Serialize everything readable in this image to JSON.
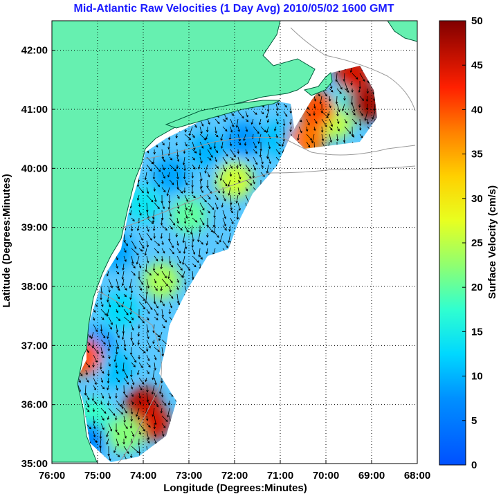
{
  "chart_data": {
    "type": "heatmap",
    "title": "Mid-Atlantic Raw Velocities (1 Day Avg) 2010/05/02 1600 GMT",
    "xlabel": "Longitude (Degrees:Minutes)",
    "ylabel": "Latitude (Degrees:Minutes)",
    "xlim": [
      -76,
      -68
    ],
    "ylim": [
      35,
      42.5
    ],
    "x_ticks": [
      {
        "value": -76,
        "label": "76:00"
      },
      {
        "value": -75,
        "label": "75:00"
      },
      {
        "value": -74,
        "label": "74:00"
      },
      {
        "value": -73,
        "label": "73:00"
      },
      {
        "value": -72,
        "label": "72:00"
      },
      {
        "value": -71,
        "label": "71:00"
      },
      {
        "value": -70,
        "label": "70:00"
      },
      {
        "value": -69,
        "label": "69:00"
      },
      {
        "value": -68,
        "label": "68:00"
      }
    ],
    "y_ticks": [
      {
        "value": 35,
        "label": "35:00"
      },
      {
        "value": 36,
        "label": "36:00"
      },
      {
        "value": 37,
        "label": "37:00"
      },
      {
        "value": 38,
        "label": "38:00"
      },
      {
        "value": 39,
        "label": "39:00"
      },
      {
        "value": 40,
        "label": "40:00"
      },
      {
        "value": 41,
        "label": "41:00"
      },
      {
        "value": 42,
        "label": "42:00"
      }
    ],
    "grid": true,
    "colorbar": {
      "label": "Surface Velocity (cm/s)",
      "min": 0,
      "max": 50,
      "ticks": [
        "0",
        "5",
        "10",
        "15",
        "20",
        "25",
        "30",
        "35",
        "40",
        "45",
        "50"
      ],
      "colormap": "jet"
    },
    "colors": {
      "land": "#66f0b0",
      "coastline": "#005a3a",
      "isobath": "#9a9a9a",
      "title": "#1a1aff"
    },
    "velocity_regions": [
      {
        "lon": -73.4,
        "lat": 39.9,
        "speed": 9
      },
      {
        "lon": -72.6,
        "lat": 40.3,
        "speed": 10
      },
      {
        "lon": -71.8,
        "lat": 40.5,
        "speed": 8
      },
      {
        "lon": -71.0,
        "lat": 40.5,
        "speed": 11
      },
      {
        "lon": -72.0,
        "lat": 39.8,
        "speed": 26
      },
      {
        "lon": -73.0,
        "lat": 39.2,
        "speed": 20
      },
      {
        "lon": -74.0,
        "lat": 39.4,
        "speed": 14
      },
      {
        "lon": -74.6,
        "lat": 38.6,
        "speed": 9
      },
      {
        "lon": -73.6,
        "lat": 38.1,
        "speed": 24
      },
      {
        "lon": -74.5,
        "lat": 37.6,
        "speed": 13
      },
      {
        "lon": -75.0,
        "lat": 37.0,
        "speed": 8
      },
      {
        "lon": -74.6,
        "lat": 36.6,
        "speed": 11
      },
      {
        "lon": -74.0,
        "lat": 36.0,
        "speed": 47
      },
      {
        "lon": -73.8,
        "lat": 35.7,
        "speed": 45
      },
      {
        "lon": -74.4,
        "lat": 35.5,
        "speed": 22
      },
      {
        "lon": -75.1,
        "lat": 35.8,
        "speed": 18
      },
      {
        "lon": -75.2,
        "lat": 35.4,
        "speed": 7
      },
      {
        "lon": -75.3,
        "lat": 36.8,
        "speed": 40
      },
      {
        "lon": -69.8,
        "lat": 40.8,
        "speed": 25
      },
      {
        "lon": -69.4,
        "lat": 41.2,
        "speed": 15
      },
      {
        "lon": -69.1,
        "lat": 41.1,
        "speed": 48
      },
      {
        "lon": -69.4,
        "lat": 41.6,
        "speed": 45
      },
      {
        "lon": -70.4,
        "lat": 40.5,
        "speed": 38
      },
      {
        "lon": -70.2,
        "lat": 41.0,
        "speed": 40
      }
    ]
  }
}
